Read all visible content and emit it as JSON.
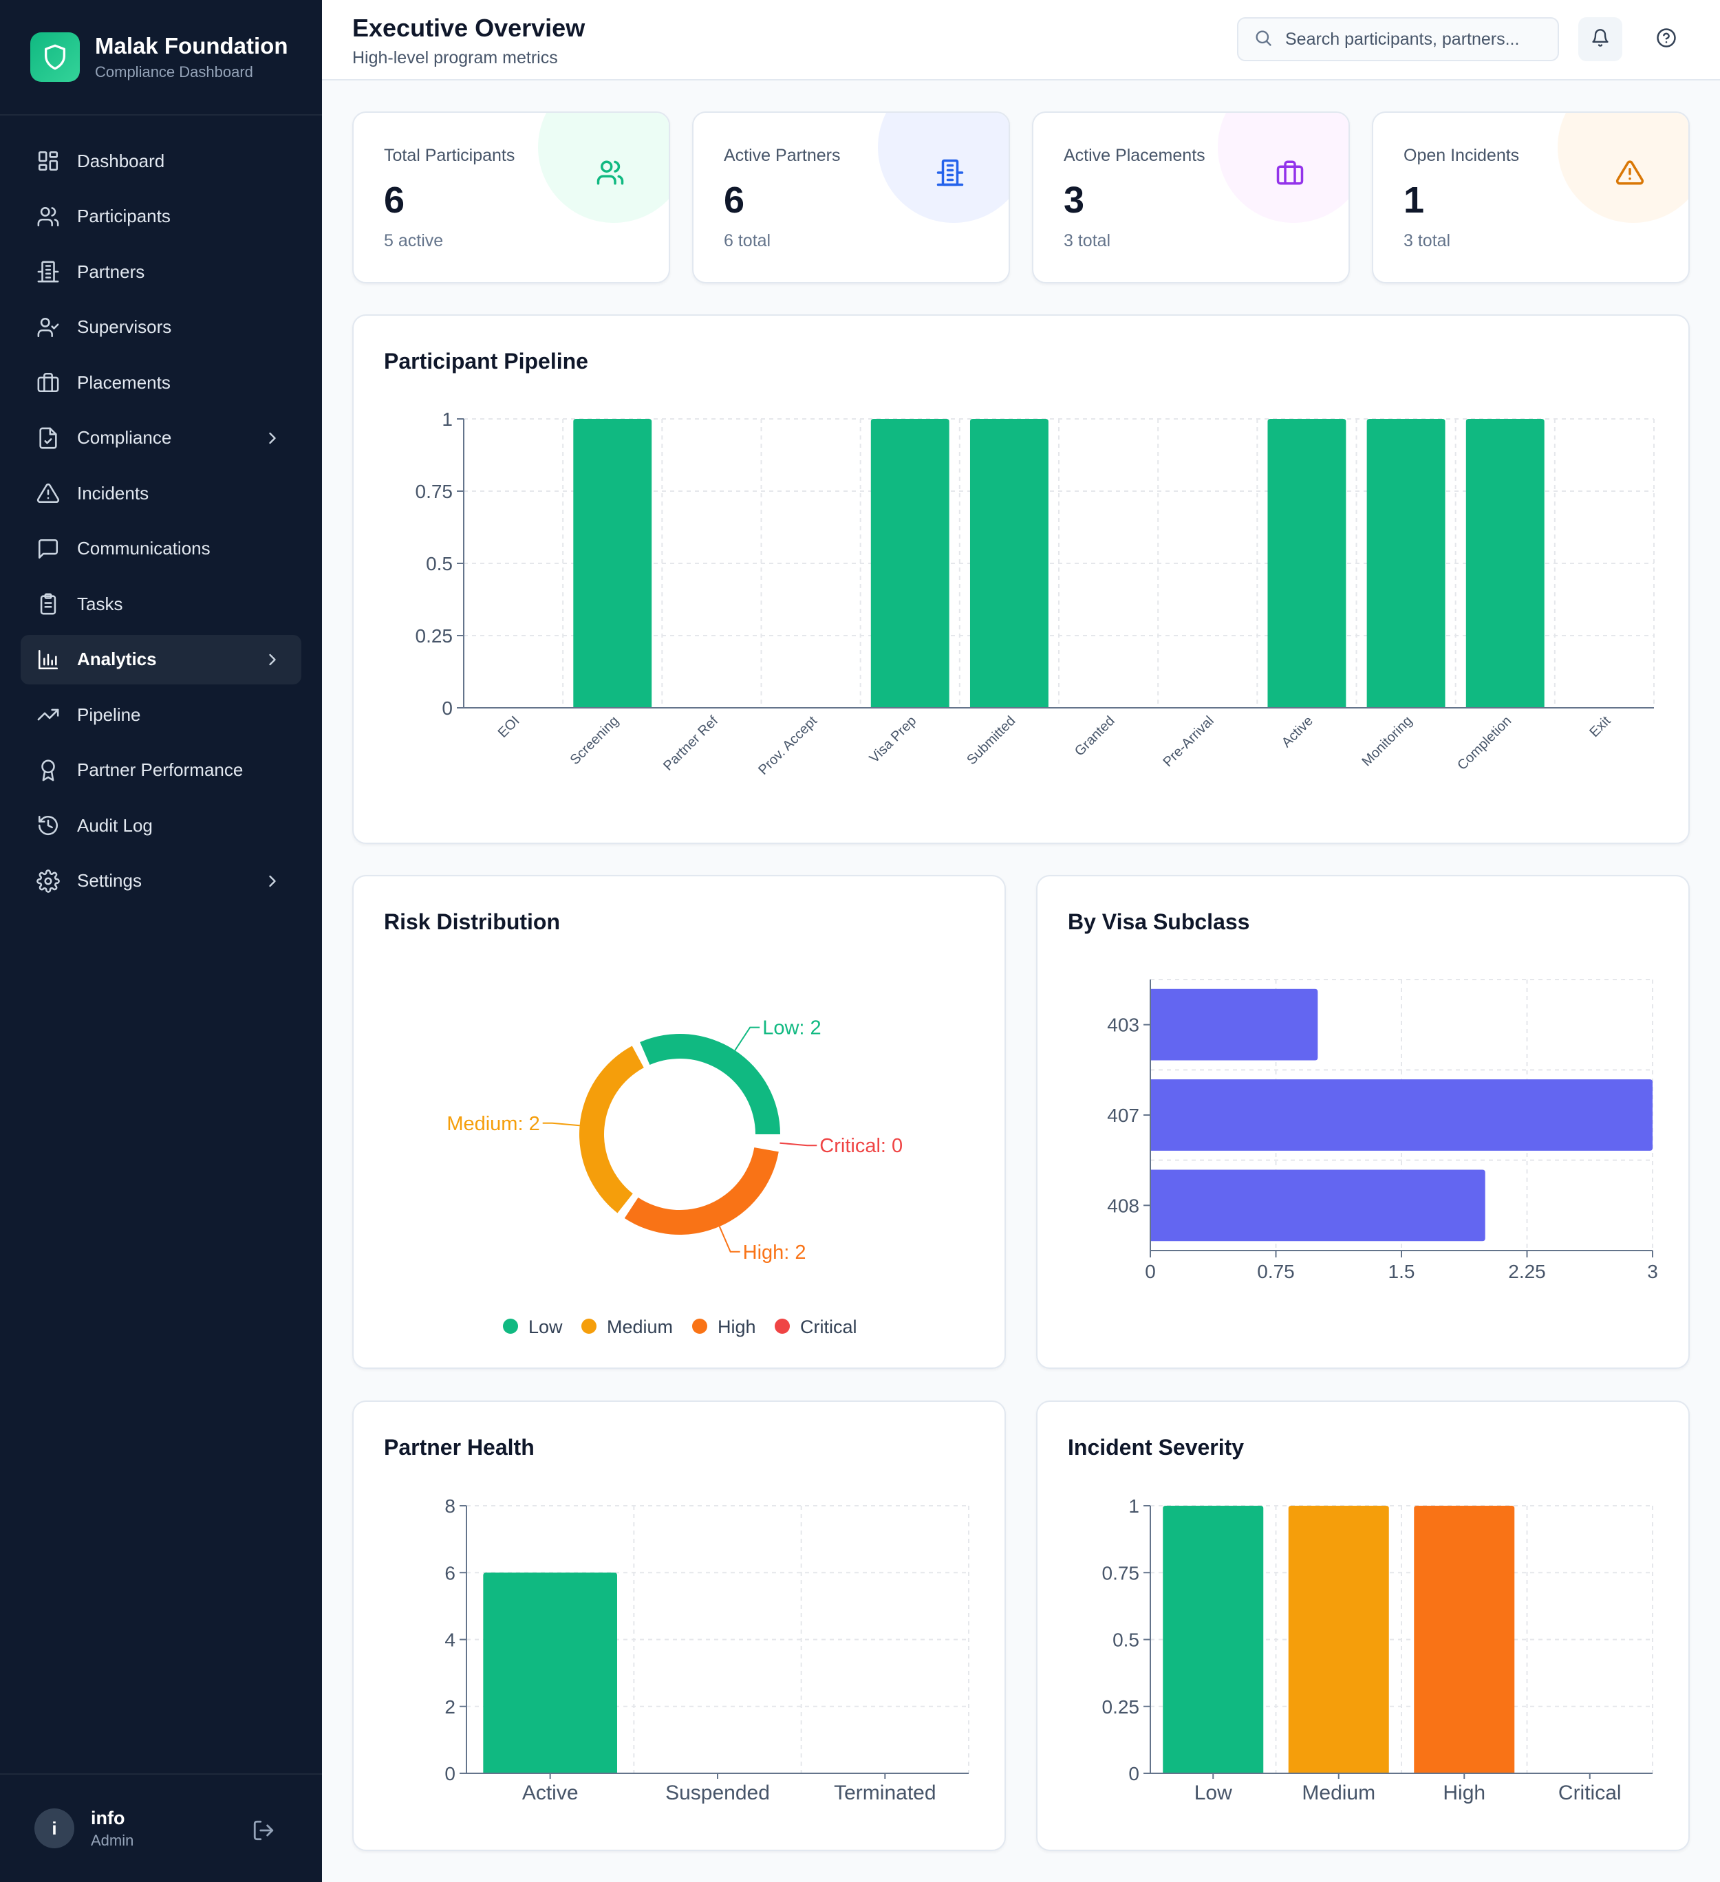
{
  "brand": {
    "title": "Malak Foundation",
    "subtitle": "Compliance Dashboard"
  },
  "nav": [
    {
      "label": "Dashboard",
      "icon": "dashboard-icon"
    },
    {
      "label": "Participants",
      "icon": "users-icon"
    },
    {
      "label": "Partners",
      "icon": "building-icon"
    },
    {
      "label": "Supervisors",
      "icon": "user-check-icon"
    },
    {
      "label": "Placements",
      "icon": "briefcase-icon"
    },
    {
      "label": "Compliance",
      "icon": "file-check-icon",
      "chevron": true
    },
    {
      "label": "Incidents",
      "icon": "warning-icon"
    },
    {
      "label": "Communications",
      "icon": "message-icon"
    },
    {
      "label": "Tasks",
      "icon": "clipboard-icon"
    },
    {
      "label": "Analytics",
      "icon": "bar-chart-icon",
      "chevron": true,
      "active": true
    },
    {
      "label": "Pipeline",
      "icon": "trend-icon"
    },
    {
      "label": "Partner Performance",
      "icon": "award-icon"
    },
    {
      "label": "Audit Log",
      "icon": "history-icon"
    },
    {
      "label": "Settings",
      "icon": "gear-icon",
      "chevron": true
    }
  ],
  "user": {
    "initial": "i",
    "name": "info",
    "role": "Admin"
  },
  "header": {
    "title": "Executive Overview",
    "subtitle": "High-level program metrics",
    "search_placeholder": "Search participants, partners..."
  },
  "stats": [
    {
      "label": "Total Participants",
      "value": "6",
      "sub": "5 active",
      "icon": "users-icon",
      "accent": "#10b981",
      "tint": "#ecfdf5"
    },
    {
      "label": "Active Partners",
      "value": "6",
      "sub": "6 total",
      "icon": "building-icon",
      "accent": "#2563eb",
      "tint": "#eef2ff"
    },
    {
      "label": "Active Placements",
      "value": "3",
      "sub": "3 total",
      "icon": "briefcase-icon",
      "accent": "#9333ea",
      "tint": "#fdf4ff"
    },
    {
      "label": "Open Incidents",
      "value": "1",
      "sub": "3 total",
      "icon": "warning-icon",
      "accent": "#d97706",
      "tint": "#fff7ed"
    }
  ],
  "colors": {
    "green": "#10b981",
    "orange": "#f59e0b",
    "deep_orange": "#f97316",
    "red": "#ef4444",
    "indigo": "#6366f1"
  },
  "chart_data": [
    {
      "type": "bar",
      "title": "Participant Pipeline",
      "categories": [
        "EOI",
        "Screening",
        "Partner Ref",
        "Prov. Accept",
        "Visa Prep",
        "Submitted",
        "Granted",
        "Pre-Arrival",
        "Active",
        "Monitoring",
        "Completion",
        "Exit"
      ],
      "values": [
        0,
        1,
        0,
        0,
        1,
        1,
        0,
        0,
        1,
        1,
        1,
        0
      ],
      "ylim": [
        0,
        1
      ],
      "yticks": [
        "0",
        "0.25",
        "0.5",
        "0.75",
        "1"
      ],
      "color": "#10b981",
      "grid": true
    },
    {
      "type": "pie",
      "title": "Risk Distribution",
      "categories": [
        "Low",
        "Medium",
        "High",
        "Critical"
      ],
      "values": [
        2,
        2,
        2,
        0
      ],
      "labels": [
        "Low: 2",
        "Medium: 2",
        "High: 2",
        "Critical: 0"
      ],
      "colors": [
        "#10b981",
        "#f59e0b",
        "#f97316",
        "#ef4444"
      ],
      "legend": "bottom"
    },
    {
      "type": "bar",
      "orientation": "horizontal",
      "title": "By Visa Subclass",
      "categories": [
        "403",
        "407",
        "408"
      ],
      "values": [
        1,
        3,
        2
      ],
      "xlim": [
        0,
        3
      ],
      "xticks": [
        "0",
        "0.75",
        "1.5",
        "2.25",
        "3"
      ],
      "color": "#6366f1",
      "grid": true
    },
    {
      "type": "bar",
      "title": "Partner Health",
      "categories": [
        "Active",
        "Suspended",
        "Terminated"
      ],
      "values": [
        6,
        0,
        0
      ],
      "ylim": [
        0,
        8
      ],
      "yticks": [
        "0",
        "2",
        "4",
        "6",
        "8"
      ],
      "color": "#10b981",
      "grid": true
    },
    {
      "type": "bar",
      "title": "Incident Severity",
      "categories": [
        "Low",
        "Medium",
        "High",
        "Critical"
      ],
      "values": [
        1,
        1,
        1,
        0
      ],
      "ylim": [
        0,
        1
      ],
      "yticks": [
        "0",
        "0.25",
        "0.5",
        "0.75",
        "1"
      ],
      "colors": [
        "#10b981",
        "#f59e0b",
        "#f97316",
        "#ef4444"
      ],
      "grid": true
    }
  ]
}
